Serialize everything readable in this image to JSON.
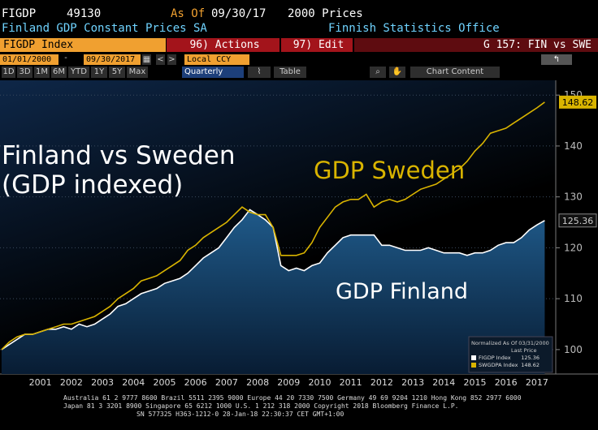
{
  "header": {
    "ticker": "FIGDP",
    "code": "49130",
    "as_of_label": "As Of",
    "as_of": "09/30/17",
    "prices": "2000 Prices",
    "description": "Finland GDP Constant Prices SA",
    "source": "Finnish Statistics Office"
  },
  "toolbar": {
    "security": "FIGDP Index",
    "actions": "96) Actions",
    "edit": "97) Edit",
    "chart_name": "G 157: FIN vs SWE",
    "start_date": "01/01/2000",
    "end_date": "09/30/2017",
    "currency": "Local CCY",
    "periods": [
      "1D",
      "3D",
      "1M",
      "6M",
      "YTD",
      "1Y",
      "5Y",
      "Max"
    ],
    "frequency": "Quarterly",
    "table": "Table",
    "chart_content": "Chart Content"
  },
  "chart_data": {
    "type": "line",
    "title": "Finland vs Sweden (GDP indexed)",
    "annotations": [
      "GDP Sweden",
      "GDP Finland"
    ],
    "x": [
      2000.25,
      2000.5,
      2000.75,
      2001,
      2001.25,
      2001.5,
      2001.75,
      2002,
      2002.25,
      2002.5,
      2002.75,
      2003,
      2003.25,
      2003.5,
      2003.75,
      2004,
      2004.25,
      2004.5,
      2004.75,
      2005,
      2005.25,
      2005.5,
      2005.75,
      2006,
      2006.25,
      2006.5,
      2006.75,
      2007,
      2007.25,
      2007.5,
      2007.75,
      2008,
      2008.25,
      2008.5,
      2008.75,
      2009,
      2009.25,
      2009.5,
      2009.75,
      2010,
      2010.25,
      2010.5,
      2010.75,
      2011,
      2011.25,
      2011.5,
      2011.75,
      2012,
      2012.25,
      2012.5,
      2012.75,
      2013,
      2013.25,
      2013.5,
      2013.75,
      2014,
      2014.25,
      2014.5,
      2014.75,
      2015,
      2015.25,
      2015.5,
      2015.75,
      2016,
      2016.25,
      2016.5,
      2016.75,
      2017,
      2017.25,
      2017.5,
      2017.75
    ],
    "series": [
      {
        "name": "FIGDP Index",
        "color": "#ffffff",
        "fill": "#1b4d78",
        "last_price": 125.36,
        "values": [
          100,
          101,
          102,
          103,
          103,
          103.5,
          104,
          104,
          104.5,
          104,
          105,
          104.5,
          105,
          106,
          107,
          108.5,
          109,
          110,
          111,
          111.5,
          112,
          113,
          113.5,
          114,
          115,
          116.5,
          118,
          119,
          120,
          122,
          124,
          125.5,
          127.5,
          126.5,
          125.5,
          124,
          116.5,
          115.5,
          116,
          115.5,
          116.5,
          117,
          119,
          120.5,
          122,
          122.5,
          122.5,
          122.5,
          122.5,
          120.5,
          120.5,
          120,
          119.5,
          119.5,
          119.5,
          120,
          119.5,
          119,
          119,
          119,
          118.5,
          119,
          119,
          119.5,
          120.5,
          121,
          121,
          122,
          123.5,
          124.5,
          125.36
        ]
      },
      {
        "name": "SWGDPA Index",
        "color": "#d9b400",
        "last_price": 148.62,
        "values": [
          100,
          101.5,
          102.5,
          103,
          103,
          103.5,
          104,
          104.5,
          105,
          105,
          105.5,
          106,
          106.5,
          107.5,
          108.5,
          110,
          111,
          112,
          113.5,
          114,
          114.5,
          115.5,
          116.5,
          117.5,
          119.5,
          120.5,
          122,
          123,
          124,
          125,
          126.5,
          128,
          127,
          126.5,
          126.5,
          124,
          118.5,
          118.5,
          118.5,
          119,
          121,
          124,
          126,
          128,
          129,
          129.5,
          129.5,
          130.5,
          128,
          129,
          129.5,
          129,
          129.5,
          130.5,
          131.5,
          132,
          132.5,
          133.5,
          134.5,
          135.5,
          137,
          139,
          140.5,
          142.5,
          143,
          143.5,
          144.5,
          145.5,
          146.5,
          147.5,
          148.62
        ]
      }
    ],
    "xlim": [
      2000.2,
      2018.0
    ],
    "xticks": [
      {
        "value": 2001.5,
        "label": "2001"
      },
      {
        "value": 2002.5,
        "label": "2002"
      },
      {
        "value": 2003.5,
        "label": "2003"
      },
      {
        "value": 2004.5,
        "label": "2004"
      },
      {
        "value": 2005.5,
        "label": "2005"
      },
      {
        "value": 2006.5,
        "label": "2006"
      },
      {
        "value": 2007.5,
        "label": "2007"
      },
      {
        "value": 2008.5,
        "label": "2008"
      },
      {
        "value": 2009.5,
        "label": "2009"
      },
      {
        "value": 2010.5,
        "label": "2010"
      },
      {
        "value": 2011.5,
        "label": "2011"
      },
      {
        "value": 2012.5,
        "label": "2012"
      },
      {
        "value": 2013.5,
        "label": "2013"
      },
      {
        "value": 2014.5,
        "label": "2014"
      },
      {
        "value": 2015.5,
        "label": "2015"
      },
      {
        "value": 2016.5,
        "label": "2016"
      },
      {
        "value": 2017.5,
        "label": "2017"
      }
    ],
    "ylim": [
      95.2,
      152.9
    ],
    "yticks": [
      100,
      110,
      120,
      130,
      140,
      150
    ],
    "grid": true,
    "legend": {
      "title": "Normalized As Of 03/31/2000",
      "column": "Last Price",
      "position": "lower right"
    }
  },
  "footer": [
    "Australia 61 2 9777 8600 Brazil 5511 2395 9000 Europe 44 20 7330 7500 Germany 49 69 9204 1210 Hong Kong 852 2977 6000",
    "Japan 81 3 3201 8900       Singapore 65 6212 1000       U.S. 1 212 318 2000          Copyright 2018 Bloomberg Finance L.P.",
    "SN 577325 H363-1212-0 28-Jan-18 22:30:37 CET  GMT+1:00"
  ]
}
